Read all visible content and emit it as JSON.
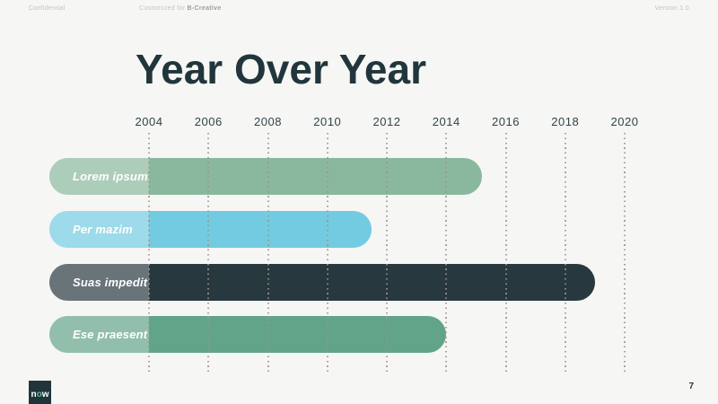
{
  "header": {
    "confidential": "Confidential",
    "customized_prefix": "Customized for",
    "customized_client": "B-Creative",
    "version": "Version 1.0"
  },
  "title": "Year Over Year",
  "chart_data": {
    "type": "bar",
    "orientation": "horizontal",
    "title": "Year Over Year",
    "x_ticks": [
      2004,
      2006,
      2008,
      2010,
      2012,
      2014,
      2016,
      2018,
      2020
    ],
    "x_axis_range": [
      2000.65,
      2021.5
    ],
    "grid": "dotted-vertical",
    "bars_start_year": 2000.65,
    "label_section_end_year": 2004,
    "bars": [
      {
        "label": "Lorem ipsum",
        "end_year": 2015.2,
        "color": "#8ab89e"
      },
      {
        "label": "Per mazim",
        "end_year": 2011.5,
        "color": "#73cbe1"
      },
      {
        "label": "Suas impedit",
        "end_year": 2019.0,
        "color": "#27383e"
      },
      {
        "label": "Ese praesent",
        "end_year": 2014.0,
        "color": "#62a489"
      }
    ],
    "legend": "none",
    "grid_color": "#9e928a",
    "tick_label_color": "#30444a"
  },
  "footer": {
    "logo": {
      "n": "n",
      "o": "o",
      "w": "w"
    },
    "page": "7"
  }
}
